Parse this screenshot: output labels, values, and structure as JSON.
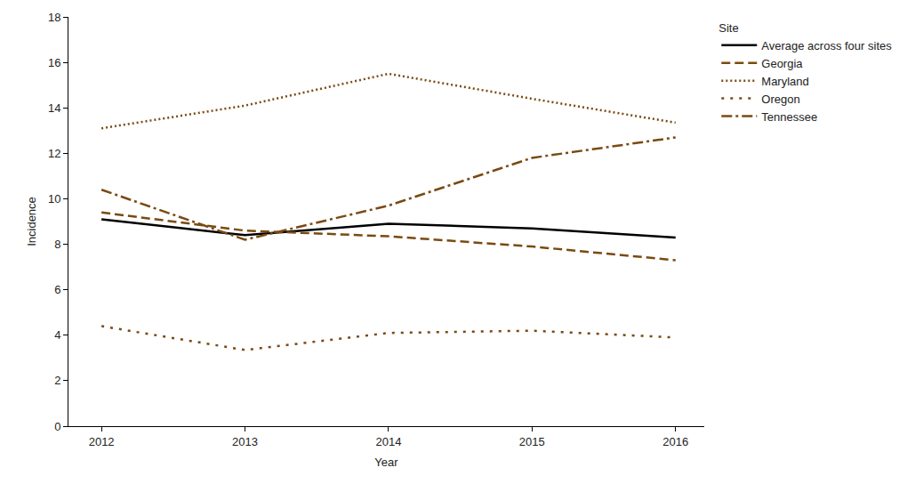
{
  "chart_data": {
    "type": "line",
    "x_label": "Year",
    "y_label": "Incidence",
    "legend_title": "Site",
    "x": [
      2012,
      2013,
      2014,
      2015,
      2016
    ],
    "xlim": [
      2011.77,
      2016.2
    ],
    "xticks": [
      2012,
      2013,
      2014,
      2015,
      2016
    ],
    "ylim": [
      0,
      18
    ],
    "yticks": [
      0,
      2,
      4,
      6,
      8,
      10,
      12,
      14,
      16,
      18
    ],
    "grid": false,
    "legend": "right",
    "series": [
      {
        "name": "Average across four sites",
        "color": "#000000",
        "line_style": "solid",
        "values": [
          9.1,
          8.4,
          8.9,
          8.7,
          8.3
        ]
      },
      {
        "name": "Georgia",
        "color": "#7a4a12",
        "line_style": "dashed",
        "values": [
          9.4,
          8.6,
          8.35,
          7.9,
          7.3
        ]
      },
      {
        "name": "Maryland",
        "color": "#7a4a12",
        "line_style": "dotted",
        "values": [
          13.1,
          14.1,
          15.5,
          14.4,
          13.35
        ]
      },
      {
        "name": "Oregon",
        "color": "#7a4a12",
        "line_style": "spaced_dotted",
        "values": [
          4.4,
          3.35,
          4.1,
          4.2,
          3.9
        ]
      },
      {
        "name": "Tennessee",
        "color": "#7a4a12",
        "line_style": "dashdot",
        "values": [
          10.4,
          8.2,
          9.7,
          11.8,
          12.7
        ]
      }
    ]
  }
}
